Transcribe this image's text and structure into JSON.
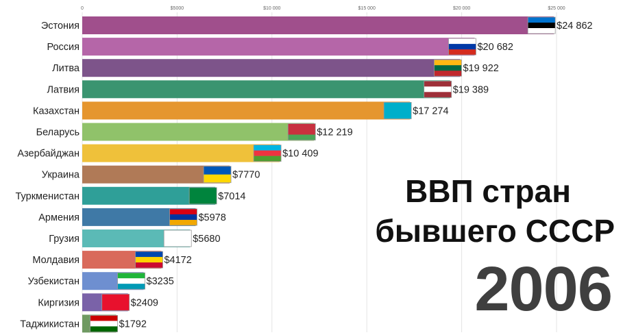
{
  "title": {
    "line1": "ВВП стран",
    "line2": "бывшего СССР",
    "year": "2006"
  },
  "chart_data": {
    "type": "bar",
    "orientation": "horizontal",
    "xlim": [
      0,
      25000
    ],
    "grid": true,
    "x_ticks": [
      {
        "value": 0,
        "label": "0"
      },
      {
        "value": 5000,
        "label": "$5000"
      },
      {
        "value": 10000,
        "label": "$10 000"
      },
      {
        "value": 15000,
        "label": "$15 000"
      },
      {
        "value": 20000,
        "label": "$20 000"
      },
      {
        "value": 25000,
        "label": "$25 000"
      }
    ],
    "bars": [
      {
        "category": "Эстония",
        "value": 24862,
        "label": "$24 862",
        "color": "#a04f8c",
        "flag": [
          "#0072ce",
          "#000000",
          "#ffffff"
        ]
      },
      {
        "category": "Россия",
        "value": 20682,
        "label": "$20 682",
        "color": "#b566a8",
        "flag": [
          "#ffffff",
          "#0039a6",
          "#d52b1e"
        ]
      },
      {
        "category": "Литва",
        "value": 19922,
        "label": "$19 922",
        "color": "#7d548a",
        "flag": [
          "#fdb913",
          "#006a44",
          "#c1272d"
        ]
      },
      {
        "category": "Латвия",
        "value": 19389,
        "label": "$19 389",
        "color": "#3a9470",
        "flag": [
          "#9e3039",
          "#ffffff",
          "#9e3039"
        ]
      },
      {
        "category": "Казахстан",
        "value": 17274,
        "label": "$17 274",
        "color": "#e5962f",
        "flag": [
          "#00afca"
        ]
      },
      {
        "category": "Беларусь",
        "value": 12219,
        "label": "$12 219",
        "color": "#90c26a",
        "flag": [
          "#c8313e",
          "#c8313e",
          "#4aa657"
        ]
      },
      {
        "category": "Азербайджан",
        "value": 10409,
        "label": "$10 409",
        "color": "#efc13a",
        "flag": [
          "#00b5e2",
          "#ef3340",
          "#509e2f"
        ]
      },
      {
        "category": "Украина",
        "value": 7770,
        "label": "$7770",
        "color": "#b07a57",
        "flag": [
          "#0057b7",
          "#ffd700"
        ]
      },
      {
        "category": "Туркменистан",
        "value": 7014,
        "label": "$7014",
        "color": "#2f9f98",
        "flag": [
          "#00843d"
        ]
      },
      {
        "category": "Армения",
        "value": 5978,
        "label": "$5978",
        "color": "#3f79a6",
        "flag": [
          "#d90012",
          "#0033a0",
          "#f2a800"
        ]
      },
      {
        "category": "Грузия",
        "value": 5680,
        "label": "$5680",
        "color": "#5bbab6",
        "flag": [
          "#ffffff"
        ]
      },
      {
        "category": "Молдавия",
        "value": 4172,
        "label": "$4172",
        "color": "#d96a5b",
        "flag": [
          "#0046ae",
          "#ffd200",
          "#cc092f"
        ]
      },
      {
        "category": "Узбекистан",
        "value": 3235,
        "label": "$3235",
        "color": "#6e8fd0",
        "flag": [
          "#1eb53a",
          "#ffffff",
          "#0099b5"
        ]
      },
      {
        "category": "Киргизия",
        "value": 2409,
        "label": "$2409",
        "color": "#7a62a8",
        "flag": [
          "#e8112d"
        ]
      },
      {
        "category": "Таджикистан",
        "value": 1792,
        "label": "$1792",
        "color": "#6f9a62",
        "flag": [
          "#cc0000",
          "#ffffff",
          "#006600"
        ]
      }
    ]
  }
}
